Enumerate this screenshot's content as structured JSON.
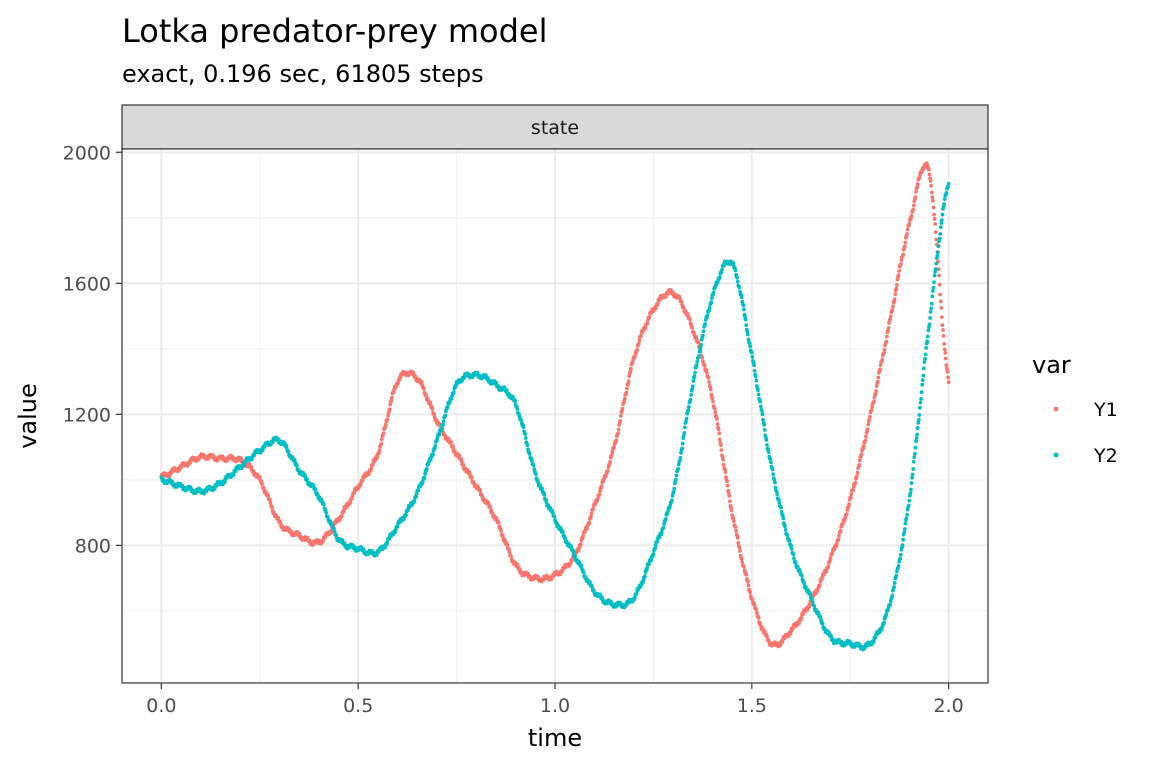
{
  "chart_data": {
    "type": "scatter",
    "title": "Lotka predator-prey model",
    "subtitle": "exact, 0.196 sec, 61805 steps",
    "facet_label": "state",
    "xlabel": "time",
    "ylabel": "value",
    "xlim": [
      -0.1,
      2.1
    ],
    "ylim": [
      380,
      2010
    ],
    "x_ticks": [
      0.0,
      0.5,
      1.0,
      1.5,
      2.0
    ],
    "x_tick_labels": [
      "0.0",
      "0.5",
      "1.0",
      "1.5",
      "2.0"
    ],
    "y_ticks": [
      800,
      1200,
      1600,
      2000
    ],
    "y_tick_labels": [
      "800",
      "1200",
      "1600",
      "2000"
    ],
    "y_minor_ticks": [
      600,
      1000,
      1400,
      1800
    ],
    "x_minor_ticks": [
      0.25,
      0.75,
      1.25,
      1.75
    ],
    "grid": true,
    "legend": {
      "title": "var",
      "position": "right",
      "entries": [
        {
          "name": "Y1",
          "color": "#F8766D"
        },
        {
          "name": "Y2",
          "color": "#00BFC4"
        }
      ]
    },
    "x": [
      0.0,
      0.05,
      0.1,
      0.15,
      0.2,
      0.25,
      0.3,
      0.35,
      0.4,
      0.45,
      0.5,
      0.55,
      0.6,
      0.65,
      0.7,
      0.75,
      0.8,
      0.85,
      0.9,
      0.95,
      1.0,
      1.05,
      1.1,
      1.15,
      1.2,
      1.25,
      1.3,
      1.35,
      1.4,
      1.45,
      1.5,
      1.55,
      1.6,
      1.65,
      1.7,
      1.75,
      1.8,
      1.85,
      1.9,
      1.95,
      2.0
    ],
    "series": [
      {
        "name": "Y1",
        "color": "#F8766D",
        "values": [
          1010,
          1040,
          1070,
          1065,
          1060,
          1000,
          870,
          830,
          810,
          880,
          980,
          1080,
          1300,
          1310,
          1180,
          1080,
          980,
          880,
          740,
          700,
          710,
          770,
          920,
          1100,
          1370,
          1520,
          1570,
          1460,
          1250,
          900,
          640,
          500,
          540,
          630,
          760,
          940,
          1190,
          1480,
          1780,
          1940,
          1300
        ]
      },
      {
        "name": "Y2",
        "color": "#00BFC4",
        "values": [
          1000,
          980,
          965,
          990,
          1040,
          1090,
          1120,
          1030,
          950,
          820,
          790,
          780,
          860,
          960,
          1120,
          1290,
          1320,
          1290,
          1230,
          1020,
          880,
          770,
          660,
          620,
          640,
          780,
          960,
          1290,
          1560,
          1660,
          1380,
          1040,
          790,
          640,
          520,
          500,
          500,
          620,
          940,
          1470,
          1910
        ]
      }
    ]
  }
}
